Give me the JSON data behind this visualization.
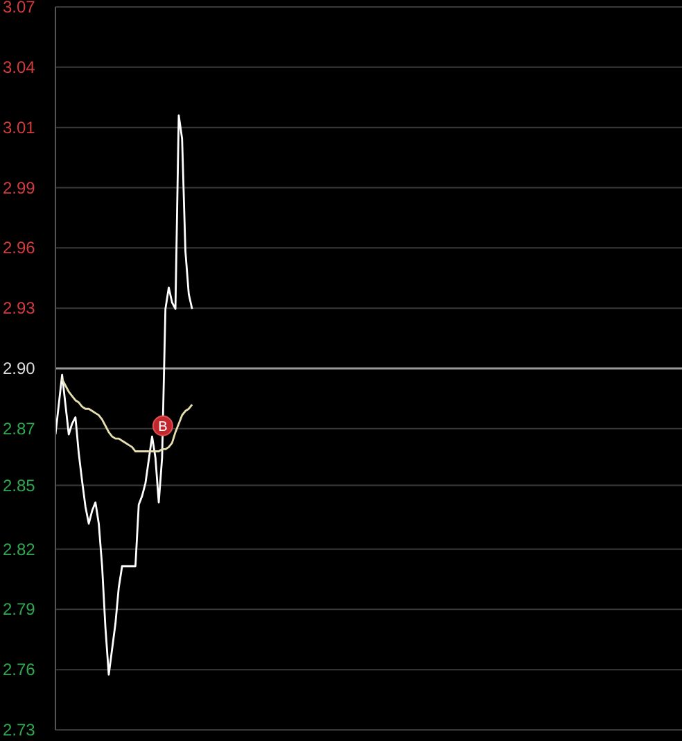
{
  "chart_data": {
    "type": "line",
    "categories": [
      null,
      null,
      null,
      null,
      null,
      null,
      null,
      null,
      null,
      null,
      null,
      null,
      null,
      null,
      null,
      null,
      null,
      null,
      null,
      null,
      null,
      null,
      null,
      null,
      null,
      null,
      null,
      null,
      null,
      null,
      null,
      null,
      null,
      null,
      null,
      null,
      null,
      null,
      null,
      null,
      null,
      null,
      null,
      null,
      null,
      null,
      null,
      null,
      null,
      null,
      null,
      null,
      null,
      null,
      null,
      null,
      null,
      null,
      null,
      null,
      null,
      null,
      null,
      null,
      null,
      null,
      null,
      null,
      null,
      null,
      null,
      null,
      null,
      null,
      null,
      null,
      null,
      null,
      null,
      null,
      null,
      null,
      null,
      null,
      null,
      null,
      null,
      null,
      null,
      null,
      null,
      null,
      null,
      null,
      null,
      null,
      null,
      null,
      null,
      null,
      null,
      null,
      null,
      null,
      null,
      null,
      null,
      null,
      null,
      null,
      null,
      null,
      null,
      null,
      null,
      null,
      null,
      null,
      null,
      null,
      null,
      null,
      null,
      null,
      null,
      null,
      null,
      null,
      null,
      null,
      null,
      null,
      null,
      null,
      null,
      null,
      null,
      null,
      null,
      null,
      null,
      null,
      null,
      null,
      null,
      null,
      null,
      null,
      null,
      null,
      null,
      null,
      null,
      null,
      null,
      null,
      null,
      null,
      null,
      null,
      null,
      null,
      null,
      null,
      null,
      null,
      null,
      null,
      null,
      null,
      null,
      null,
      null,
      null,
      null,
      null,
      null,
      null,
      null,
      null,
      null,
      null,
      null,
      null,
      null,
      null,
      null,
      null,
      null
    ],
    "ylim": [
      2.73,
      3.07
    ],
    "yticks": [
      {
        "value": 2.73,
        "label": "2.73"
      },
      {
        "value": 2.7583,
        "label": "2.76"
      },
      {
        "value": 2.7867,
        "label": "2.79"
      },
      {
        "value": 2.815,
        "label": "2.82"
      },
      {
        "value": 2.845,
        "label": "2.85"
      },
      {
        "value": 2.8717,
        "label": "2.87"
      },
      {
        "value": 2.9,
        "label": "2.90"
      },
      {
        "value": 2.9283,
        "label": "2.93"
      },
      {
        "value": 2.9567,
        "label": "2.96"
      },
      {
        "value": 2.985,
        "label": "2.99"
      },
      {
        "value": 3.0133,
        "label": "3.01"
      },
      {
        "value": 3.0417,
        "label": "3.04"
      },
      {
        "value": 3.07,
        "label": "3.07"
      }
    ],
    "tick_labels": "y",
    "grid": "y",
    "marker": "none",
    "line_style": "solid",
    "ref_lines": [
      {
        "axis": "y",
        "value": 2.9,
        "color": "#9a9a9a"
      }
    ],
    "annotations": [
      {
        "text": "B",
        "y": 2.873
      }
    ],
    "series": [
      {
        "color": "#ffffff",
        "values": [
          2.869,
          2.883,
          2.897,
          2.883,
          2.869,
          2.874,
          2.877,
          2.86,
          2.847,
          2.835,
          2.827,
          2.833,
          2.837,
          2.827,
          2.807,
          2.778,
          2.756,
          2.768,
          2.78,
          2.797,
          2.807,
          2.807,
          2.807,
          2.807,
          2.807,
          2.836,
          2.84,
          2.846,
          2.857,
          2.868,
          2.858,
          2.837,
          2.858,
          2.928,
          2.938,
          2.931,
          2.928,
          3.019,
          3.008,
          2.955,
          2.935,
          2.928,
          null,
          null,
          null,
          null,
          null,
          null,
          null,
          null,
          null,
          null,
          null,
          null,
          null,
          null,
          null,
          null,
          null,
          null,
          null,
          null,
          null,
          null,
          null,
          null,
          null,
          null,
          null,
          null,
          null,
          null,
          null,
          null,
          null,
          null,
          null,
          null,
          null,
          null,
          null,
          null,
          null,
          null,
          null,
          null,
          null,
          null,
          null,
          null,
          null,
          null,
          null,
          null,
          null,
          null,
          null,
          null,
          null,
          null,
          null,
          null,
          null,
          null,
          null,
          null,
          null,
          null,
          null,
          null,
          null,
          null,
          null,
          null,
          null,
          null,
          null,
          null,
          null,
          null,
          null,
          null,
          null,
          null,
          null,
          null,
          null,
          null,
          null,
          null,
          null,
          null,
          null,
          null,
          null,
          null,
          null,
          null,
          null,
          null,
          null,
          null,
          null,
          null,
          null,
          null,
          null,
          null,
          null,
          null,
          null,
          null,
          null,
          null,
          null,
          null,
          null,
          null,
          null,
          null,
          null,
          null,
          null,
          null,
          null,
          null,
          null,
          null,
          null,
          null,
          null,
          null,
          null,
          null,
          null,
          null,
          null,
          null,
          null,
          null,
          null,
          null,
          null,
          null,
          null,
          null,
          null,
          null,
          null
        ]
      },
      {
        "color": "#e6dfb0",
        "values": [
          null,
          null,
          2.895,
          2.892,
          2.889,
          2.887,
          2.885,
          2.884,
          2.882,
          2.881,
          2.881,
          2.88,
          2.879,
          2.878,
          2.876,
          2.873,
          2.87,
          2.868,
          2.867,
          2.867,
          2.866,
          2.865,
          2.864,
          2.863,
          2.861,
          2.861,
          2.861,
          2.861,
          2.861,
          2.861,
          2.861,
          2.861,
          2.862,
          2.862,
          2.863,
          2.865,
          2.87,
          2.874,
          2.878,
          2.88,
          2.881,
          2.883,
          null,
          null,
          null,
          null,
          null,
          null,
          null,
          null,
          null,
          null,
          null,
          null,
          null,
          null,
          null,
          null,
          null,
          null,
          null,
          null,
          null,
          null,
          null,
          null,
          null,
          null,
          null,
          null,
          null,
          null,
          null,
          null,
          null,
          null,
          null,
          null,
          null,
          null,
          null,
          null,
          null,
          null,
          null,
          null,
          null,
          null,
          null,
          null,
          null,
          null,
          null,
          null,
          null,
          null,
          null,
          null,
          null,
          null,
          null,
          null,
          null,
          null,
          null,
          null,
          null,
          null,
          null,
          null,
          null,
          null,
          null,
          null,
          null,
          null,
          null,
          null,
          null,
          null,
          null,
          null,
          null,
          null,
          null,
          null,
          null,
          null,
          null,
          null,
          null,
          null,
          null,
          null,
          null,
          null,
          null,
          null,
          null,
          null,
          null,
          null,
          null,
          null,
          null,
          null,
          null,
          null,
          null,
          null,
          null,
          null,
          null,
          null,
          null,
          null,
          null,
          null,
          null,
          null,
          null,
          null,
          null,
          null,
          null,
          null,
          null,
          null,
          null,
          null,
          null,
          null,
          null,
          null,
          null,
          null,
          null,
          null,
          null,
          null,
          null,
          null,
          null,
          null,
          null,
          null,
          null,
          null,
          null
        ]
      }
    ]
  }
}
